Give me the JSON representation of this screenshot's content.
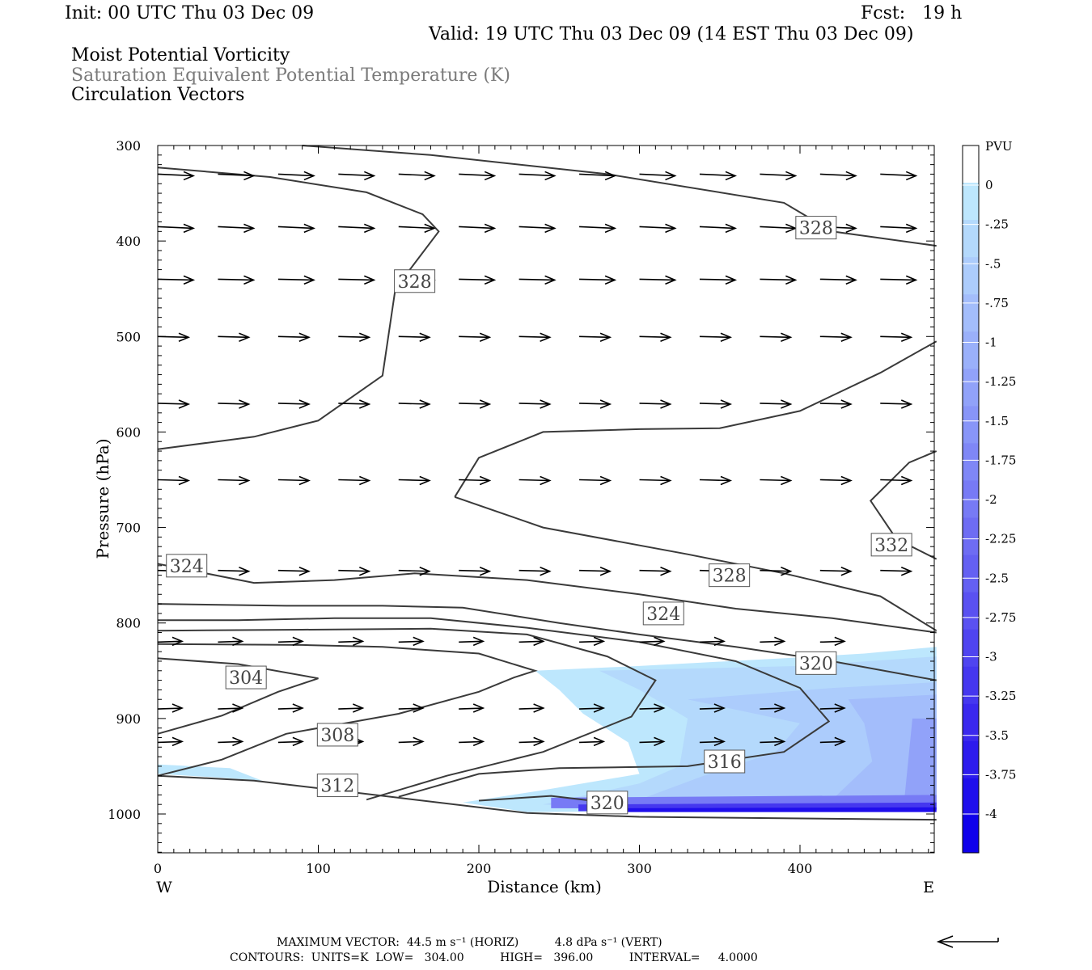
{
  "header": {
    "init": "Init: 00 UTC Thu 03 Dec 09",
    "fcst": "Fcst:   19 h",
    "valid": "Valid: 19 UTC Thu 03 Dec 09 (14 EST Thu 03 Dec 09)",
    "field1": "Moist Potential Vorticity",
    "field2": "Saturation Equivalent Potential Temperature (K)",
    "field3": "Circulation Vectors"
  },
  "footer": {
    "max_vector": "MAXIMUM VECTOR:  44.5 m s⁻¹ (HORIZ)          4.8 dPa s⁻¹ (VERT)",
    "contours": "CONTOURS:  UNITS=K  LOW=   304.00          HIGH=   396.00          INTERVAL=     4.0000"
  },
  "chart_data": {
    "type": "contour",
    "xlabel": "Distance (km)",
    "ylabel": "Pressure (hPa)",
    "x_ticks": [
      0,
      100,
      200,
      300,
      400
    ],
    "y_ticks": [
      300,
      400,
      500,
      600,
      700,
      800,
      900,
      1000
    ],
    "xlim": [
      0,
      485
    ],
    "ylim": [
      1040,
      300
    ],
    "x_end_labels": {
      "left": "W",
      "right": "E"
    },
    "colorbar": {
      "title": "PVU",
      "labels": [
        "0",
        "-.25",
        "-.5",
        "-.75",
        "-1",
        "-1.25",
        "-1.5",
        "-1.75",
        "-2",
        "-2.25",
        "-2.5",
        "-2.75",
        "-3",
        "-3.25",
        "-3.5",
        "-3.75",
        "-4"
      ],
      "colors": [
        "#ffffff",
        "#ffffff",
        "#bde7fd",
        "#b4d9fc",
        "#acccfc",
        "#a3bdfb",
        "#9ab0fa",
        "#91a2f9",
        "#8895f8",
        "#7f87f6",
        "#777af5",
        "#6e6cf3",
        "#6460f2",
        "#5a51f1",
        "#4f44f0",
        "#4537ef",
        "#3a28ee",
        "#2d1bed",
        "#1f0eec",
        "#0f00eb"
      ]
    },
    "theta_es_contours": [
      {
        "label": "304",
        "points": [
          [
            0,
            837
          ],
          [
            50,
            843
          ],
          [
            100,
            858
          ],
          [
            75,
            872
          ],
          [
            40,
            897
          ],
          [
            0,
            916
          ]
        ]
      },
      {
        "label": "308",
        "points": [
          [
            0,
            822
          ],
          [
            90,
            823
          ],
          [
            140,
            825
          ],
          [
            200,
            832
          ],
          [
            235,
            850
          ],
          [
            222,
            857
          ],
          [
            200,
            872
          ],
          [
            150,
            895
          ],
          [
            80,
            916
          ],
          [
            40,
            943
          ],
          [
            0,
            960
          ]
        ]
      },
      {
        "label": "312",
        "points": [
          [
            0,
            808
          ],
          [
            90,
            807
          ],
          [
            170,
            806
          ],
          [
            230,
            812
          ],
          [
            280,
            835
          ],
          [
            310,
            860
          ],
          [
            295,
            898
          ],
          [
            240,
            935
          ],
          [
            180,
            960
          ],
          [
            130,
            985
          ]
        ]
      },
      {
        "label": "316",
        "points": [
          [
            0,
            797
          ],
          [
            50,
            797
          ],
          [
            110,
            795
          ],
          [
            170,
            795
          ],
          [
            230,
            805
          ],
          [
            300,
            820
          ],
          [
            360,
            840
          ],
          [
            400,
            868
          ],
          [
            418,
            903
          ],
          [
            390,
            935
          ],
          [
            330,
            950
          ],
          [
            250,
            952
          ],
          [
            200,
            958
          ],
          [
            150,
            982
          ]
        ]
      },
      {
        "label": "320",
        "points": [
          [
            0,
            780
          ],
          [
            80,
            782
          ],
          [
            140,
            782
          ],
          [
            190,
            784
          ],
          [
            250,
            800
          ],
          [
            300,
            812
          ],
          [
            360,
            825
          ],
          [
            420,
            840
          ],
          [
            485,
            860
          ]
        ]
      },
      {
        "label": "320",
        "points": [
          [
            200,
            986
          ],
          [
            245,
            981
          ],
          [
            285,
            989
          ]
        ]
      },
      {
        "label": "324",
        "points": [
          [
            0,
            738
          ],
          [
            60,
            758
          ],
          [
            110,
            755
          ],
          [
            160,
            748
          ],
          [
            230,
            755
          ],
          [
            300,
            770
          ],
          [
            360,
            785
          ],
          [
            420,
            795
          ],
          [
            485,
            810
          ]
        ]
      },
      {
        "label": "328",
        "points": [
          [
            0,
            618
          ],
          [
            60,
            605
          ],
          [
            100,
            588
          ],
          [
            140,
            541
          ],
          [
            148,
            450
          ],
          [
            175,
            390
          ],
          [
            165,
            372
          ],
          [
            130,
            349
          ],
          [
            70,
            333
          ],
          [
            0,
            323
          ]
        ]
      },
      {
        "label": "328",
        "points": [
          [
            185,
            668
          ],
          [
            200,
            627
          ],
          [
            240,
            600
          ],
          [
            300,
            597
          ],
          [
            350,
            596
          ],
          [
            400,
            578
          ],
          [
            450,
            538
          ],
          [
            485,
            505
          ]
        ]
      },
      {
        "label": "328",
        "points": [
          [
            185,
            668
          ],
          [
            240,
            700
          ],
          [
            330,
            728
          ],
          [
            390,
            748
          ],
          [
            450,
            772
          ],
          [
            485,
            808
          ]
        ]
      },
      {
        "label": "328",
        "points": [
          [
            90,
            300
          ],
          [
            170,
            310
          ],
          [
            280,
            330
          ],
          [
            390,
            360
          ],
          [
            420,
            390
          ],
          [
            485,
            405
          ]
        ]
      },
      {
        "label": "332",
        "points": [
          [
            485,
            620
          ],
          [
            468,
            632
          ],
          [
            444,
            672
          ],
          [
            460,
            712
          ],
          [
            485,
            733
          ]
        ]
      },
      {
        "label": "",
        "points": [
          [
            0,
            960
          ],
          [
            60,
            965
          ],
          [
            150,
            983
          ],
          [
            230,
            999
          ],
          [
            300,
            1003
          ],
          [
            485,
            1006
          ]
        ]
      }
    ],
    "vector_field": {
      "levels_hpa": [
        330,
        385,
        440,
        500,
        570,
        650,
        745,
        820,
        890,
        925
      ],
      "direction": "west-to-east",
      "max_horizontal_m_s": 44.5,
      "max_vertical_dPa_s": 4.8
    }
  }
}
